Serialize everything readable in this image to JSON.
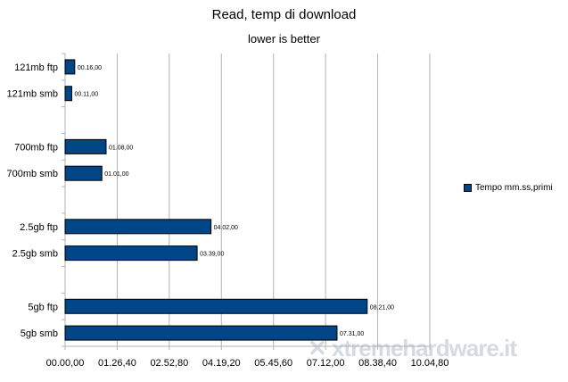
{
  "chart_data": {
    "type": "bar",
    "orientation": "horizontal",
    "title": "Read, temp di download",
    "subtitle": "lower is better",
    "categories": [
      "121mb ftp",
      "121mb smb",
      "",
      "700mb ftp",
      "700mb smb",
      "",
      "2.5gb ftp",
      "2.5gb smb",
      "",
      "5gb ftp",
      "5gb smb"
    ],
    "series": [
      {
        "name": "Tempo mm.ss,primi",
        "values_seconds": [
          16,
          11,
          null,
          68,
          61,
          null,
          242,
          219,
          null,
          501,
          451
        ],
        "data_labels": [
          "00.16,00",
          "00.11,00",
          "",
          "01.08,00",
          "01.01,00",
          "",
          "04.02,00",
          "03.39,00",
          "",
          "08.21,00",
          "07.31,00"
        ],
        "color": "#004586"
      }
    ],
    "x_ticks": [
      "00.00,00",
      "01.26,40",
      "02.52,80",
      "04.19,20",
      "05.45,60",
      "07.12,00",
      "08.38,40",
      "10.04,80"
    ],
    "xlim_seconds": [
      0,
      604.8
    ],
    "grid": "vertical",
    "legend": "right"
  },
  "watermark": "xtremehardware.it"
}
